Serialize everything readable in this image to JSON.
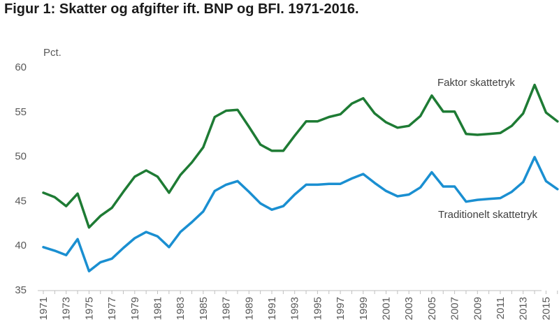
{
  "chart_data": {
    "type": "line",
    "title": "Figur 1: Skatter og afgifter ift. BNP og BFI. 1971-2016.",
    "ylabel": "Pct.",
    "xlabel": "",
    "ylim": [
      35,
      60
    ],
    "yticks": [
      35,
      40,
      45,
      50,
      55,
      60
    ],
    "xtick_labels": [
      "1971",
      "1973",
      "1975",
      "1977",
      "1979",
      "1981",
      "1983",
      "1985",
      "1987",
      "1989",
      "1991",
      "1993",
      "1995",
      "1997",
      "1999",
      "2001",
      "2003",
      "2005",
      "2007",
      "2009",
      "2011",
      "2013",
      "2015"
    ],
    "grid": false,
    "x": [
      1971,
      1972,
      1973,
      1974,
      1975,
      1976,
      1977,
      1978,
      1979,
      1980,
      1981,
      1982,
      1983,
      1984,
      1985,
      1986,
      1987,
      1988,
      1989,
      1990,
      1991,
      1992,
      1993,
      1994,
      1995,
      1996,
      1997,
      1998,
      1999,
      2000,
      2001,
      2002,
      2003,
      2004,
      2005,
      2006,
      2007,
      2008,
      2009,
      2010,
      2011,
      2012,
      2013,
      2014,
      2015,
      2016
    ],
    "series": [
      {
        "name": "Faktor skattetryk",
        "color": "#1e7b34",
        "values": [
          45.9,
          45.4,
          44.4,
          45.8,
          42.0,
          43.3,
          44.2,
          46.0,
          47.7,
          48.4,
          47.7,
          45.9,
          47.9,
          49.3,
          51.0,
          54.4,
          55.1,
          55.2,
          53.3,
          51.3,
          50.6,
          50.6,
          52.3,
          53.9,
          53.9,
          54.4,
          54.7,
          55.9,
          56.5,
          54.8,
          53.8,
          53.2,
          53.4,
          54.5,
          56.8,
          55.0,
          55.0,
          52.5,
          52.4,
          52.5,
          52.6,
          53.4,
          54.8,
          58.0,
          54.9,
          53.9
        ]
      },
      {
        "name": "Traditionelt skattetryk",
        "color": "#1a8fd1",
        "values": [
          39.8,
          39.4,
          38.9,
          40.7,
          37.1,
          38.1,
          38.5,
          39.7,
          40.8,
          41.5,
          41.0,
          39.8,
          41.5,
          42.6,
          43.8,
          46.1,
          46.8,
          47.2,
          46.0,
          44.7,
          44.0,
          44.4,
          45.7,
          46.8,
          46.8,
          46.9,
          46.9,
          47.5,
          48.0,
          47.0,
          46.1,
          45.5,
          45.7,
          46.5,
          48.2,
          46.6,
          46.6,
          44.9,
          45.1,
          45.2,
          45.3,
          46.0,
          47.1,
          49.9,
          47.2,
          46.3
        ]
      }
    ]
  }
}
